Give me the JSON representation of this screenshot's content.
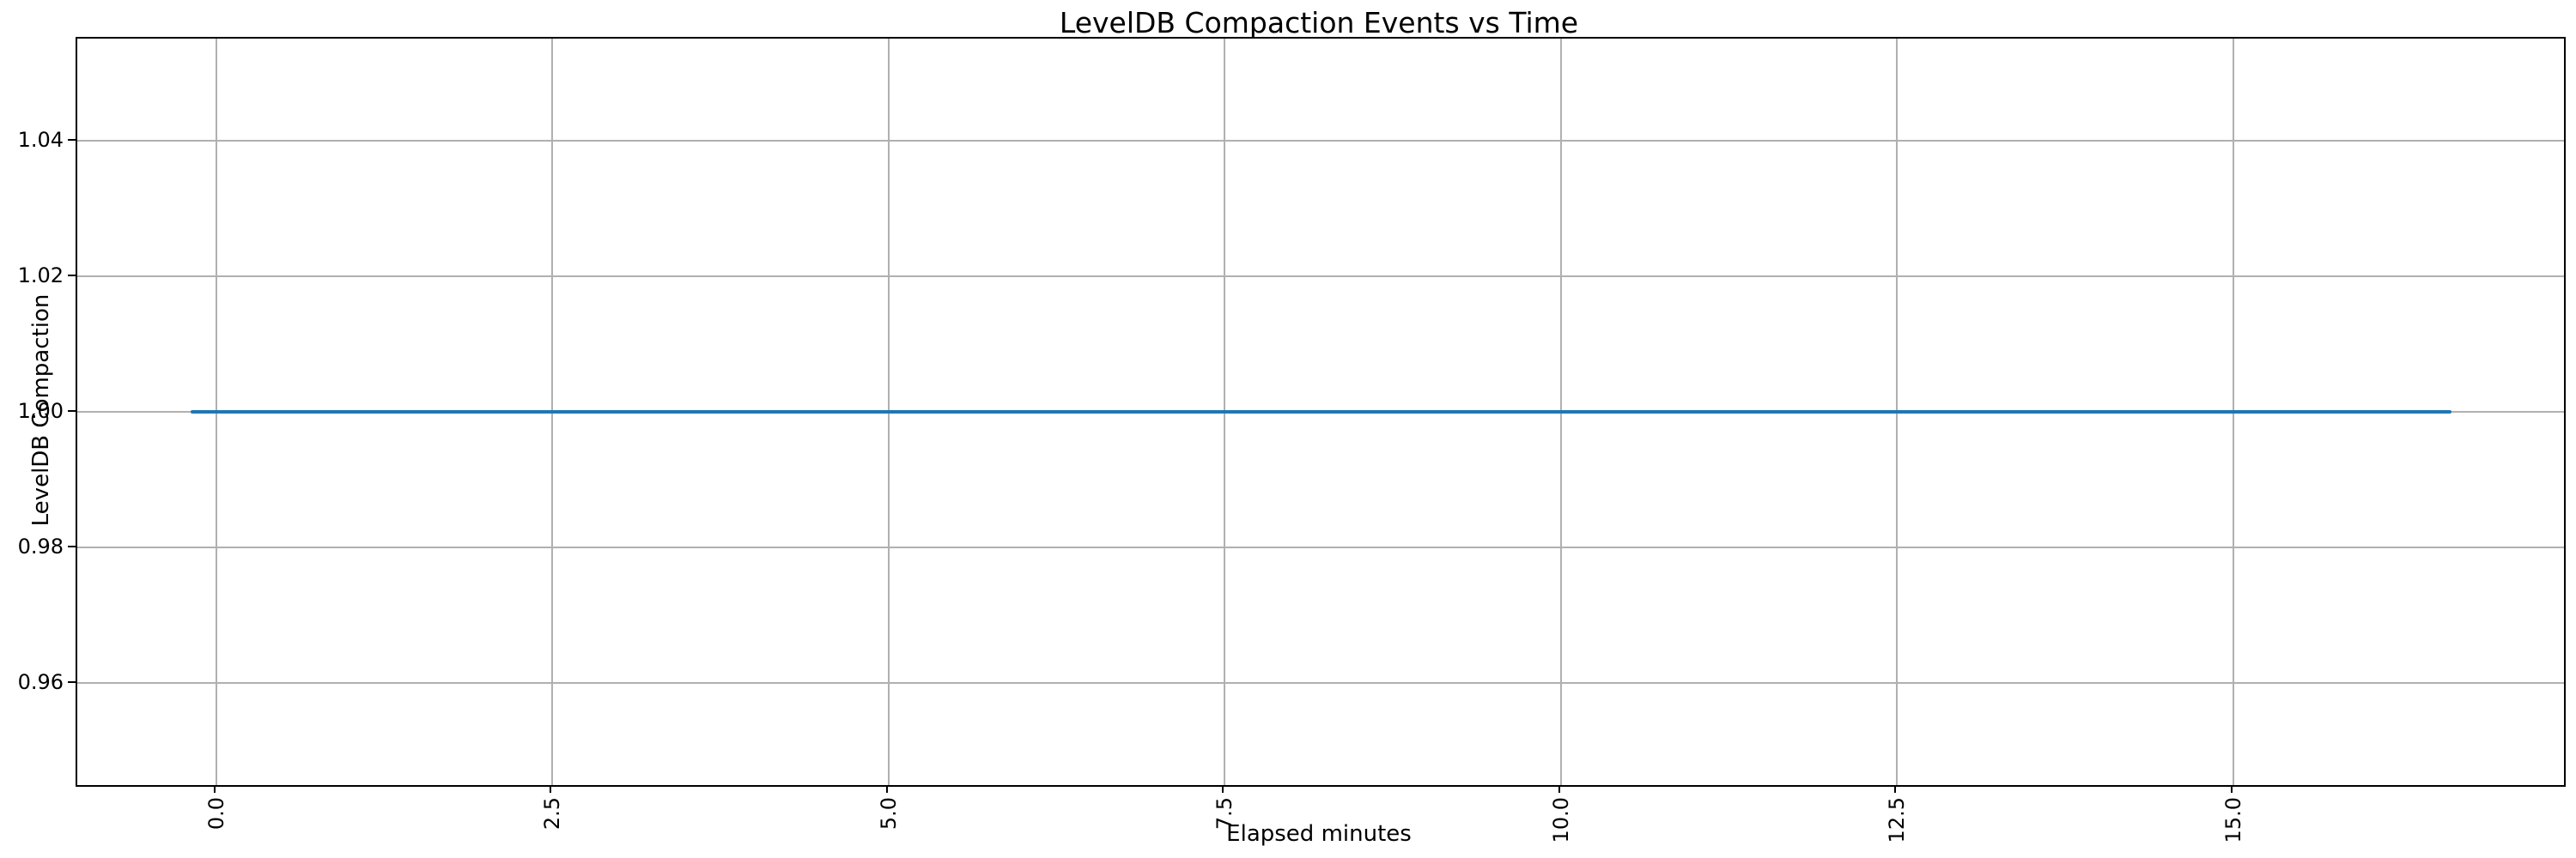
{
  "chart_data": {
    "type": "line",
    "title": "LevelDB Compaction Events vs Time",
    "xlabel": "Elapsed minutes",
    "ylabel": "LevelDB Compaction",
    "xlim": [
      -1.033,
      17.459
    ],
    "ylim": [
      0.945,
      1.055
    ],
    "xticks": [
      {
        "value": 0.0,
        "label": "0.0"
      },
      {
        "value": 2.5,
        "label": "2.5"
      },
      {
        "value": 5.0,
        "label": "5.0"
      },
      {
        "value": 7.5,
        "label": "7.5"
      },
      {
        "value": 10.0,
        "label": "10.0"
      },
      {
        "value": 12.5,
        "label": "12.5"
      },
      {
        "value": 15.0,
        "label": "15.0"
      }
    ],
    "yticks": [
      {
        "value": 1.04,
        "label": "1.04"
      },
      {
        "value": 1.02,
        "label": "1.02"
      },
      {
        "value": 1.0,
        "label": "1.00"
      },
      {
        "value": 0.98,
        "label": "0.98"
      },
      {
        "value": 0.96,
        "label": "0.96"
      }
    ],
    "xtick_rotation_degrees": 90,
    "grid": true,
    "legend": false,
    "series": [
      {
        "name": "LevelDB Compaction",
        "constant_y": 1.0,
        "points": [
          [
            -0.19,
            1.0
          ],
          [
            16.62,
            1.0
          ]
        ]
      }
    ],
    "colors": {
      "line": "#1f77b4",
      "grid": "#b0b0b0",
      "spine": "#000000",
      "text": "#000000",
      "background": "#ffffff"
    }
  }
}
